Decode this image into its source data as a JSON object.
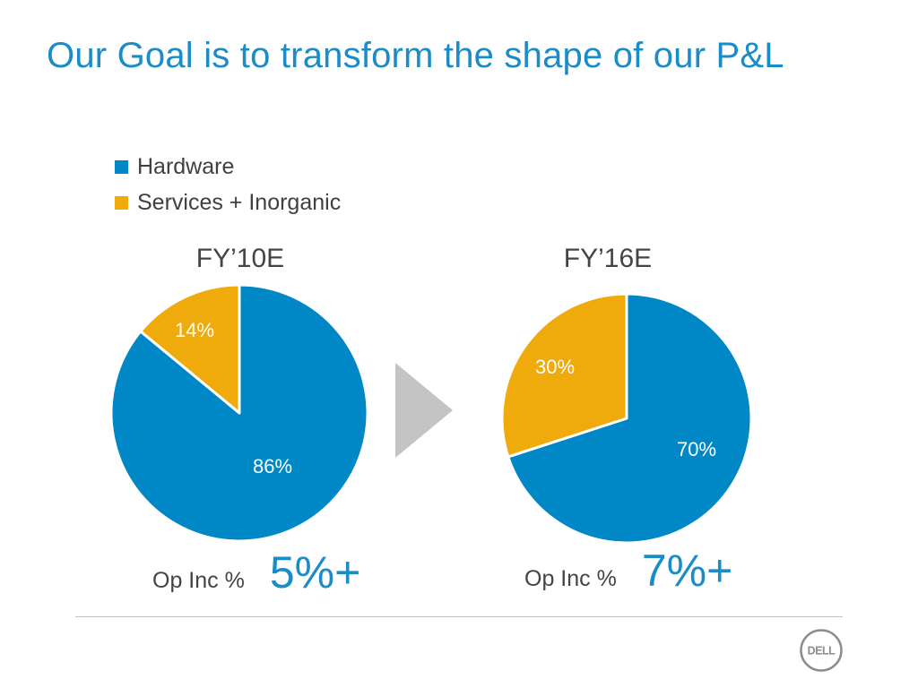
{
  "title": "Our Goal is to transform the shape of our P&L",
  "colors": {
    "hardware": "#0088c6",
    "services": "#efaa0b",
    "accent": "#1a8cc8"
  },
  "legend": [
    {
      "label": "Hardware",
      "color": "#0088c6"
    },
    {
      "label": "Services + Inorganic",
      "color": "#efaa0b"
    }
  ],
  "chart_data": [
    {
      "type": "pie",
      "title": "FY’10E",
      "categories": [
        "Hardware",
        "Services + Inorganic"
      ],
      "values": [
        86,
        14
      ],
      "labels": [
        "86%",
        "14%"
      ],
      "legend_position": "top-left"
    },
    {
      "type": "pie",
      "title": "FY’16E",
      "categories": [
        "Hardware",
        "Services + Inorganic"
      ],
      "values": [
        70,
        30
      ],
      "labels": [
        "70%",
        "30%"
      ],
      "legend_position": "top-left"
    }
  ],
  "op_inc": [
    {
      "label": "Op Inc %",
      "value": "5%+"
    },
    {
      "label": "Op Inc %",
      "value": "7%+"
    }
  ],
  "icons": {
    "transition_arrow": "arrow-right-icon",
    "logo": "dell-logo"
  },
  "logo_text": "DELL"
}
